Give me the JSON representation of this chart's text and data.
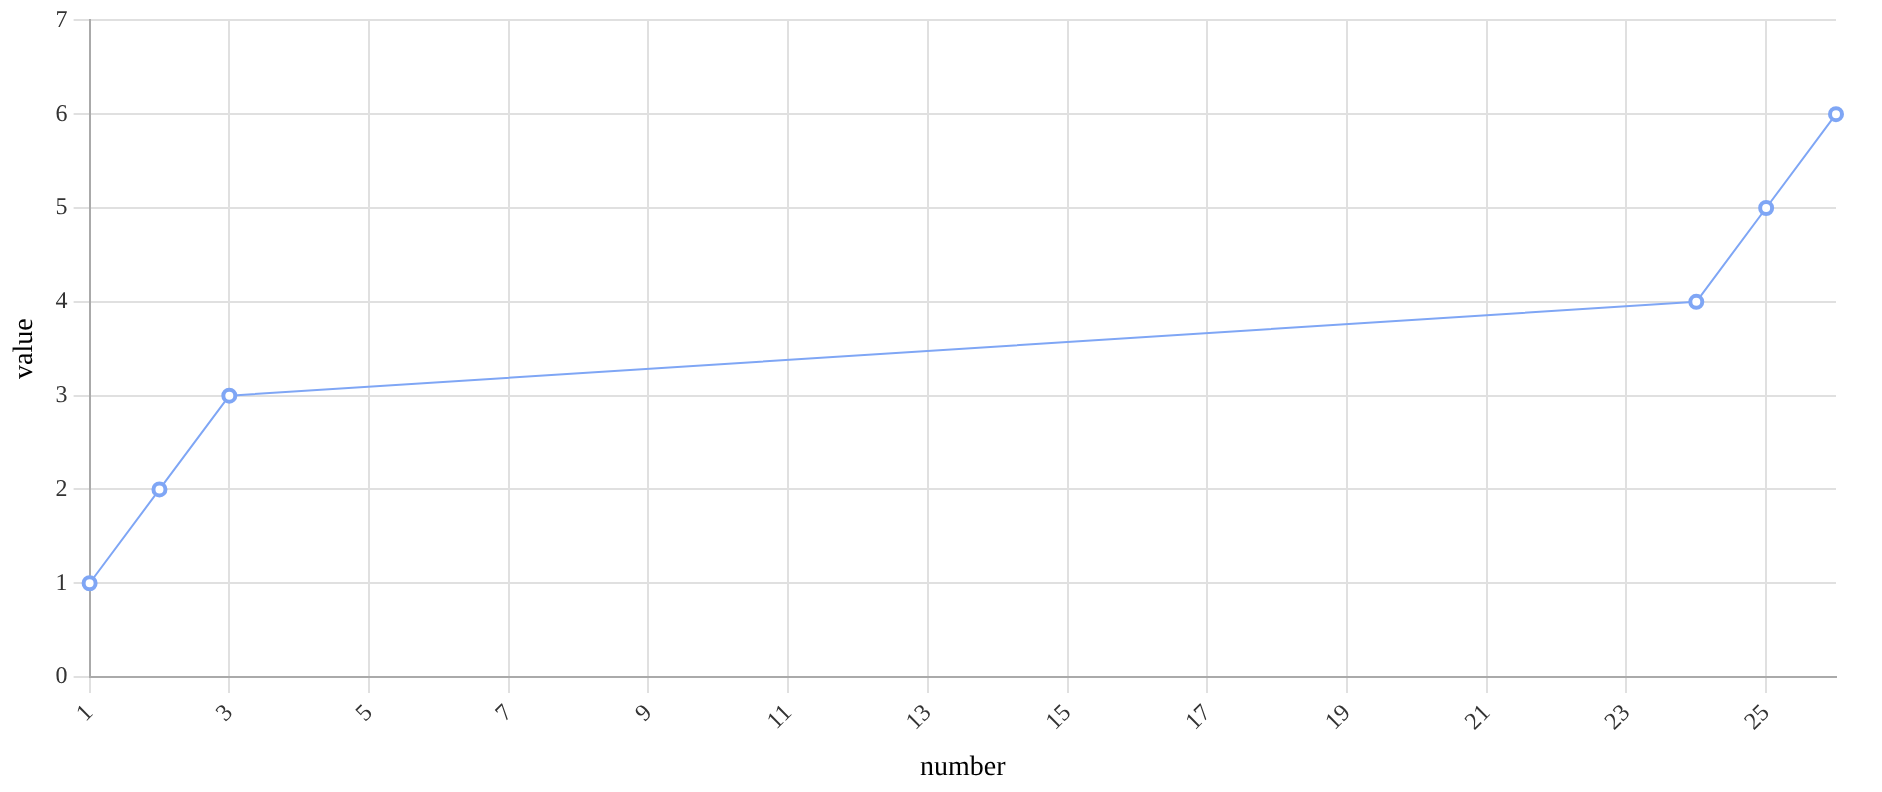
{
  "chart_data": {
    "type": "line",
    "xlabel": "number",
    "ylabel": "value",
    "x": [
      1,
      2,
      3,
      24,
      25,
      26
    ],
    "series": [
      {
        "color": "#7fa6f5",
        "values": [
          1,
          2,
          3,
          4,
          5,
          6
        ]
      }
    ],
    "xlim": [
      1,
      26
    ],
    "xticks": [
      1,
      3,
      5,
      7,
      9,
      11,
      13,
      15,
      17,
      19,
      21,
      23,
      25
    ],
    "ylim": [
      0,
      7
    ],
    "yticks": [
      0,
      1,
      2,
      3,
      4,
      5,
      6,
      7
    ],
    "grid": true,
    "marker": "circle",
    "line_style": "solid",
    "legend": false
  }
}
